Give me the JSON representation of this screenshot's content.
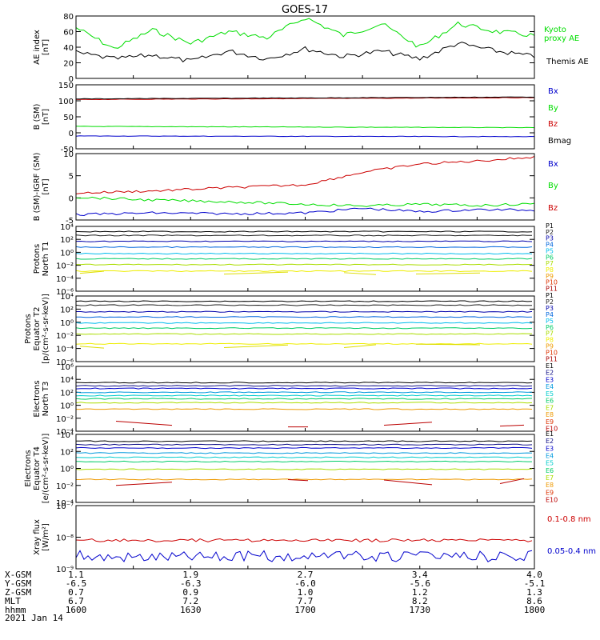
{
  "title": "GOES-17",
  "date": "2021 Jan 14",
  "colors": {
    "green": "#00dd00",
    "black": "#000000",
    "blue": "#0000cc",
    "red": "#cc0000",
    "P": [
      "#000000",
      "#222222",
      "#0000aa",
      "#0066dd",
      "#00bbee",
      "#00cc66",
      "#aadd00",
      "#eeee00",
      "#ee9900",
      "#dd3300",
      "#aa0000"
    ],
    "E": [
      "#000000",
      "#111188",
      "#0000cc",
      "#0099dd",
      "#00cccc",
      "#00cc66",
      "#aadd00",
      "#ee9900",
      "#dd3300",
      "#bb0000"
    ]
  },
  "panels": [
    {
      "id": "ae",
      "ylabel": [
        "AE index",
        "[nT]"
      ],
      "ticks": [
        "80",
        "60",
        "40",
        "20",
        "0"
      ],
      "legend": [
        "Kyoto",
        "proxy AE",
        "Themis AE"
      ]
    },
    {
      "id": "bsm",
      "ylabel": [
        "B (SM)",
        "[nT]"
      ],
      "ticks": [
        "150",
        "100",
        "50",
        "0",
        "-50"
      ],
      "legend": [
        "Bx",
        "By",
        "Bz",
        "Bmag"
      ]
    },
    {
      "id": "bigrf",
      "ylabel": [
        "B (SM)-IGRF (SM)",
        "[nT]"
      ],
      "ticks": [
        "10",
        "5",
        "0",
        "-5"
      ],
      "legend": [
        "Bx",
        "By",
        "Bz"
      ]
    },
    {
      "id": "pn",
      "ylabel": [
        "Protons",
        "North T1"
      ],
      "ticks": [
        "10⁴",
        "10²",
        "10⁰",
        "10⁻²",
        "10⁻⁴",
        "10⁻⁶"
      ],
      "legend": [
        "P1",
        "P2",
        "P3",
        "P4",
        "P5",
        "P6",
        "P7",
        "P8",
        "P9",
        "P10",
        "P11"
      ]
    },
    {
      "id": "pe",
      "ylabel": [
        "Protons",
        "Equator T2",
        "[p/(cm²-s-sr-keV)]"
      ],
      "ticks": [
        "10⁴",
        "10²",
        "10⁰",
        "10⁻²",
        "10⁻⁴",
        "10⁻⁶"
      ],
      "legend": [
        "P1",
        "P2",
        "P3",
        "P4",
        "P5",
        "P6",
        "P7",
        "P8",
        "P9",
        "P10",
        "P11"
      ]
    },
    {
      "id": "en",
      "ylabel": [
        "Electrons",
        "North T3"
      ],
      "ticks": [
        "10⁶",
        "10⁴",
        "10²",
        "10⁰",
        "10⁻²",
        "10⁻⁴"
      ],
      "legend": [
        "E1",
        "E2",
        "E3",
        "E4",
        "E5",
        "E6",
        "E7",
        "E8",
        "E9",
        "E10"
      ]
    },
    {
      "id": "ee",
      "ylabel": [
        "Electrons",
        "Equator T4",
        "[e/(cm²-s-sr-keV)]"
      ],
      "ticks": [
        "10⁴",
        "10²",
        "10⁰",
        "10⁻²",
        "10⁻⁴"
      ],
      "legend": [
        "E1",
        "E2",
        "E3",
        "E4",
        "E5",
        "E6",
        "E7",
        "E8",
        "E9",
        "E10"
      ]
    },
    {
      "id": "xr",
      "ylabel": [
        "Xray flux",
        "[W/m²]"
      ],
      "ticks": [
        "10⁻⁷",
        "10⁻⁸",
        "10⁻⁹"
      ],
      "legend": [
        "0.1-0.8 nm",
        "0.05-0.4 nm"
      ]
    }
  ],
  "footer": {
    "labels": [
      "X-GSM",
      "Y-GSM",
      "Z-GSM",
      "MLT",
      "hhmm"
    ],
    "columns": [
      {
        "xgsm": "1.1",
        "ygsm": "-6.5",
        "zgsm": "0.7",
        "mlt": "6.7",
        "hhmm": "1600"
      },
      {
        "xgsm": "1.9",
        "ygsm": "-6.3",
        "zgsm": "0.9",
        "mlt": "7.2",
        "hhmm": "1630"
      },
      {
        "xgsm": "2.7",
        "ygsm": "-6.0",
        "zgsm": "1.0",
        "mlt": "7.7",
        "hhmm": "1700"
      },
      {
        "xgsm": "3.4",
        "ygsm": "-5.6",
        "zgsm": "1.2",
        "mlt": "8.2",
        "hhmm": "1730"
      },
      {
        "xgsm": "4.0",
        "ygsm": "-5.1",
        "zgsm": "1.3",
        "mlt": "8.6",
        "hhmm": "1800"
      }
    ]
  },
  "chart_data": [
    {
      "type": "line",
      "panel": "ae",
      "ylim": [
        0,
        80
      ],
      "series": [
        {
          "name": "Kyoto proxy AE",
          "x_min": [
            0,
            10,
            20,
            30,
            40,
            50,
            60,
            70,
            80,
            90,
            100,
            110,
            120
          ],
          "values": [
            65,
            38,
            62,
            45,
            60,
            52,
            78,
            55,
            70,
            40,
            70,
            60,
            55
          ]
        },
        {
          "name": "Themis AE",
          "x_min": [
            0,
            10,
            20,
            30,
            40,
            50,
            60,
            70,
            80,
            90,
            100,
            110,
            120
          ],
          "values": [
            33,
            25,
            30,
            22,
            35,
            25,
            38,
            28,
            35,
            25,
            45,
            35,
            28
          ]
        }
      ]
    },
    {
      "type": "line",
      "panel": "bsm",
      "ylim": [
        -50,
        150
      ],
      "series": [
        {
          "name": "Bx",
          "x_min": [
            0,
            120
          ],
          "values": [
            -10,
            -12
          ]
        },
        {
          "name": "By",
          "x_min": [
            0,
            120
          ],
          "values": [
            20,
            16
          ]
        },
        {
          "name": "Bz",
          "x_min": [
            0,
            120
          ],
          "values": [
            104,
            110
          ]
        },
        {
          "name": "Bmag",
          "x_min": [
            0,
            120
          ],
          "values": [
            106,
            112
          ]
        }
      ]
    },
    {
      "type": "line",
      "panel": "bigrf",
      "ylim": [
        -5,
        11
      ],
      "series": [
        {
          "name": "Bx",
          "x_min": [
            0,
            20,
            40,
            60,
            75,
            90,
            105,
            120
          ],
          "values": [
            -3.7,
            -3.3,
            -3.5,
            -3.3,
            -2.2,
            -3.0,
            -2.5,
            -2.6
          ]
        },
        {
          "name": "By",
          "x_min": [
            0,
            20,
            40,
            60,
            75,
            90,
            105,
            120
          ],
          "values": [
            0.5,
            -0.2,
            -0.6,
            -1.2,
            -1.6,
            -1.2,
            -1.5,
            -1.1
          ]
        },
        {
          "name": "Bz",
          "x_min": [
            0,
            20,
            40,
            60,
            75,
            90,
            105,
            120
          ],
          "values": [
            1.5,
            2.0,
            2.8,
            3.5,
            6.5,
            8.5,
            9.2,
            10.2
          ]
        }
      ]
    },
    {
      "type": "line",
      "panel": "pn",
      "ylim_log10": [
        -6,
        4
      ],
      "series": [
        {
          "name": "P1",
          "values": [
            3.2
          ]
        },
        {
          "name": "P2",
          "values": [
            2.6
          ]
        },
        {
          "name": "P3",
          "values": [
            1.7
          ]
        },
        {
          "name": "P4",
          "values": [
            0.8
          ]
        },
        {
          "name": "P5",
          "values": [
            -0.2
          ]
        },
        {
          "name": "P6",
          "values": [
            -1.0
          ]
        },
        {
          "name": "P7",
          "values": [
            -1.9
          ]
        },
        {
          "name": "P8",
          "values": [
            -2.9
          ]
        }
      ]
    },
    {
      "type": "line",
      "panel": "pe",
      "ylim_log10": [
        -6,
        4
      ],
      "series": [
        {
          "name": "P1",
          "values": [
            3.2
          ]
        },
        {
          "name": "P2",
          "values": [
            2.6
          ]
        },
        {
          "name": "P3",
          "values": [
            1.6
          ]
        },
        {
          "name": "P4",
          "values": [
            0.8
          ]
        },
        {
          "name": "P5",
          "values": [
            -0.1
          ]
        },
        {
          "name": "P6",
          "values": [
            -0.9
          ]
        },
        {
          "name": "P7",
          "values": [
            -1.8
          ]
        },
        {
          "name": "P8",
          "values": [
            -3.3
          ]
        }
      ]
    },
    {
      "type": "line",
      "panel": "en",
      "ylim_log10": [
        -4,
        6
      ],
      "series": [
        {
          "name": "E1",
          "values": [
            3.5
          ]
        },
        {
          "name": "E2",
          "values": [
            3.0
          ]
        },
        {
          "name": "E3",
          "values": [
            2.6
          ]
        },
        {
          "name": "E4",
          "values": [
            2.0
          ]
        },
        {
          "name": "E5",
          "values": [
            1.5
          ]
        },
        {
          "name": "E6",
          "values": [
            1.0
          ]
        },
        {
          "name": "E7",
          "values": [
            0.4
          ]
        },
        {
          "name": "E8",
          "values": [
            -0.6
          ]
        }
      ]
    },
    {
      "type": "line",
      "panel": "ee",
      "ylim_log10": [
        -4,
        4
      ],
      "series": [
        {
          "name": "E1",
          "values": [
            3.2
          ]
        },
        {
          "name": "E2",
          "values": [
            2.8
          ]
        },
        {
          "name": "E3",
          "values": [
            2.4
          ]
        },
        {
          "name": "E4",
          "values": [
            1.8
          ]
        },
        {
          "name": "E5",
          "values": [
            1.3
          ]
        },
        {
          "name": "E6",
          "values": [
            0.8
          ]
        },
        {
          "name": "E7",
          "values": [
            -0.1
          ]
        },
        {
          "name": "E8",
          "values": [
            -1.3
          ]
        }
      ]
    },
    {
      "type": "line",
      "panel": "xr",
      "ylim_log10": [
        -9,
        -7
      ],
      "series": [
        {
          "name": "0.1-0.8 nm",
          "values": [
            -8.1
          ]
        },
        {
          "name": "0.05-0.4 nm",
          "values": [
            -8.6
          ]
        }
      ]
    }
  ]
}
